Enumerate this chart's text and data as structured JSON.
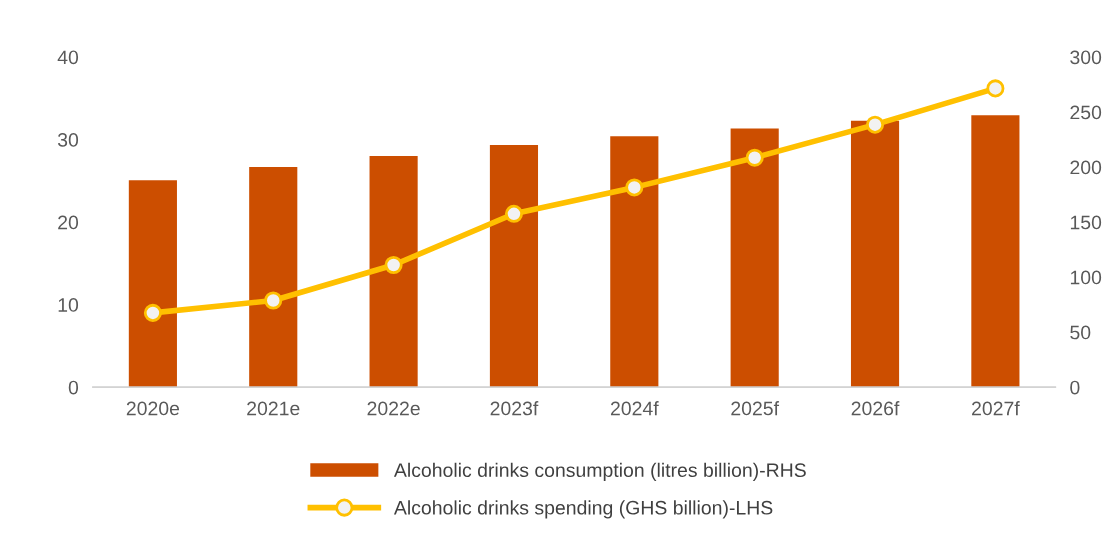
{
  "chart_data": {
    "type": "bar",
    "categories": [
      "2020e",
      "2021e",
      "2022e",
      "2023f",
      "2024f",
      "2025f",
      "2026f",
      "2027f"
    ],
    "series": [
      {
        "name": "Alcoholic drinks consumption (litres billion)-RHS",
        "axis": "y2",
        "color": "#cc4e00",
        "values": [
          188,
          200,
          210,
          220,
          228,
          235,
          242,
          247
        ]
      },
      {
        "name": "Alcoholic drinks spending (GHS billion)-LHS",
        "type": "line",
        "axis": "y",
        "color": "#ffc000",
        "marker": "circle",
        "values": [
          9.0,
          10.5,
          14.8,
          21.0,
          24.2,
          27.8,
          31.8,
          36.2
        ]
      }
    ],
    "ylim": [
      0,
      40
    ],
    "yticks": [
      0,
      10,
      20,
      30,
      40
    ],
    "y2lim": [
      0,
      300
    ],
    "y2ticks": [
      0,
      50,
      100,
      150,
      200,
      250,
      300
    ],
    "grid": false,
    "legend": "bottom"
  }
}
